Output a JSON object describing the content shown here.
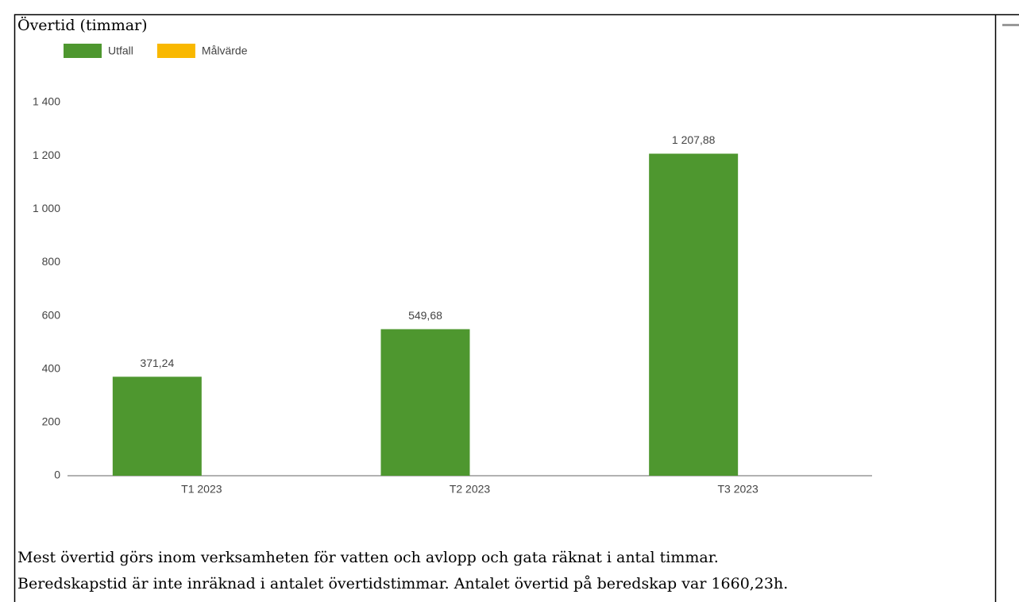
{
  "chart_data": {
    "type": "bar",
    "title": "Övertid (timmar)",
    "categories": [
      "T1 2023",
      "T2 2023",
      "T3 2023"
    ],
    "series": [
      {
        "name": "Utfall",
        "color": "#4e972f",
        "values": [
          371.24,
          549.68,
          1207.88
        ],
        "value_labels": [
          "371,24",
          "549,68",
          "1 207,88"
        ]
      },
      {
        "name": "Målvärde",
        "color": "#f9b800",
        "values": [
          null,
          null,
          null
        ]
      }
    ],
    "ylim": [
      0,
      1400
    ],
    "yticks": [
      0,
      200,
      400,
      600,
      800,
      {
        "value": 1000,
        "label": "1 000"
      },
      {
        "value": 1200,
        "label": "1 200"
      },
      {
        "value": 1400,
        "label": "1 400"
      }
    ],
    "grid": false,
    "legend": "top-left"
  },
  "text": [
    "Mest övertid görs inom verksamheten för vatten och avlopp och gata räknat i antal timmar.",
    "Beredskapstid är inte inräknad i antalet övertidstimmar. Antalet övertid på beredskap var 1660,23h."
  ]
}
